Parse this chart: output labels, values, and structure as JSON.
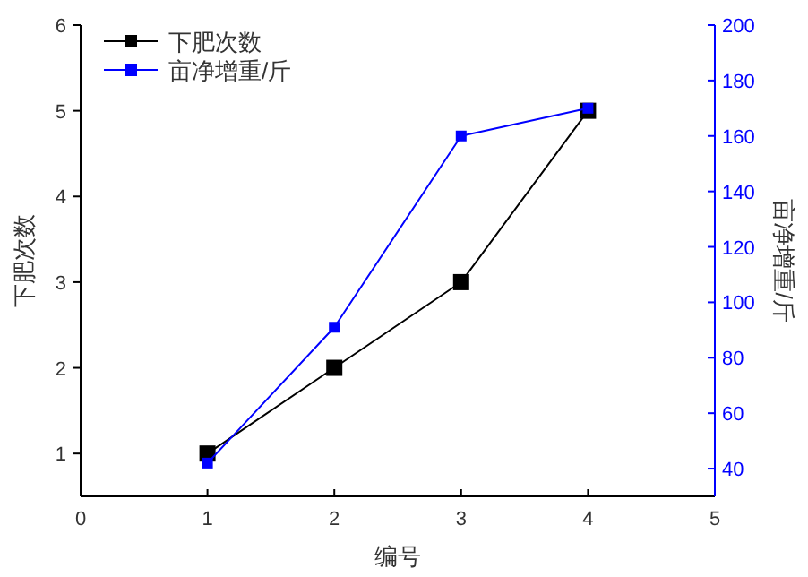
{
  "chart_data": {
    "type": "line",
    "xlabel": "编号",
    "ylabel": "下肥次数",
    "y2label": "亩净增重/斤",
    "x": [
      1,
      2,
      3,
      4
    ],
    "xlim": [
      0,
      5
    ],
    "xticks": [
      0,
      1,
      2,
      3,
      4,
      5
    ],
    "ylim": [
      0.5,
      6
    ],
    "yticks": [
      1,
      2,
      3,
      4,
      5,
      6
    ],
    "y2lim": [
      30,
      200
    ],
    "y2ticks": [
      40,
      60,
      80,
      100,
      120,
      140,
      160,
      180,
      200
    ],
    "marker": "square",
    "legend": "top left",
    "grid": false,
    "series": [
      {
        "name": "下肥次数",
        "color": "#000000",
        "values": [
          1,
          2,
          3,
          5
        ]
      },
      {
        "name": "亩净增重/斤",
        "color": "#0000ff",
        "axis": "y2",
        "values": [
          42,
          91,
          160,
          170
        ]
      }
    ]
  }
}
